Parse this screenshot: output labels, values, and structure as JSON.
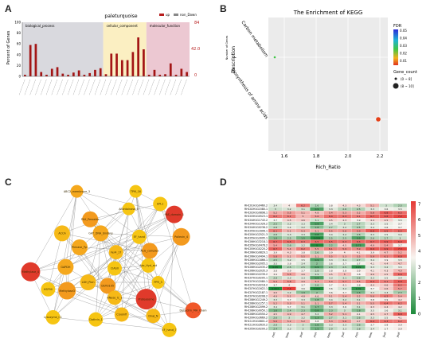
{
  "panels": {
    "a": "A",
    "b": "B",
    "c": "C",
    "d": "D"
  },
  "panel_a": {
    "title": "paleturquoise",
    "ylabel": "Percent of Genes",
    "right_ticks": [
      "84",
      "42.0",
      "0"
    ],
    "left_ticks": [
      "100",
      "80",
      "60",
      "40",
      "20",
      "0"
    ],
    "legend": [
      "up",
      "non_Down"
    ],
    "groups": [
      {
        "label": "biological_process",
        "color": "#d9d9de",
        "n": 15
      },
      {
        "label": "cellular_component",
        "color": "#fbefc2",
        "n": 8
      },
      {
        "label": "molecular_function",
        "color": "#ecc8d2",
        "n": 8
      }
    ]
  },
  "chart_data": [
    {
      "type": "bar",
      "title": "paleturquoise",
      "ylabel": "Percent of Genes",
      "ylim": [
        0,
        100
      ],
      "legend": [
        "up",
        "non_Down"
      ],
      "series": [
        {
          "name": "up",
          "values": [
            3,
            58,
            60,
            8,
            3,
            14,
            17,
            5,
            3,
            7,
            11,
            3,
            6,
            12,
            15,
            4,
            42,
            42,
            30,
            30,
            45,
            72,
            50,
            3,
            12,
            3,
            4,
            24,
            3,
            14,
            8
          ]
        }
      ]
    },
    {
      "type": "scatter",
      "title": "The Enrichment of KEGG",
      "xlabel": "Rich_Ratio",
      "ylabel": "Description",
      "categories": [
        "Biosynthesis of amino acids",
        "Carbon metabolism"
      ],
      "x_ticks": [
        "1.6",
        "1.8",
        "2.0",
        "2.2"
      ],
      "xlim": [
        1.5,
        2.25
      ],
      "points": [
        {
          "name": "Carbon metabolism",
          "x": 1.54,
          "gene_count": 6,
          "fdr": 0.03
        },
        {
          "name": "Biosynthesis of amino acids",
          "x": 2.19,
          "gene_count": 10,
          "fdr": 0.005
        }
      ],
      "fdr_label": "FDR",
      "fdr_ticks": [
        "0.05",
        "0.04",
        "0.03",
        "0.02",
        "0.01"
      ],
      "size_label": "Gene_count",
      "size_legend": [
        "(0 ~ 8]",
        "(8 ~ 10]"
      ],
      "side_label": "Number of Genes"
    },
    {
      "type": "heatmap",
      "rows": [
        {
          "gene": "RHC01H1G0460.2",
          "v": [
            3.4,
            4,
            6.2,
            2.6,
            3.8,
            4.3,
            4.3,
            5.1,
            3,
            2.5
          ]
        },
        {
          "gene": "RHC02H1G1580.1",
          "v": [
            3,
            3.2,
            3.1,
            0.9,
            3.3,
            2.6,
            2.5,
            3.3,
            3.6,
            3.5
          ]
        },
        {
          "gene": "RHC02H1G0898.1",
          "v": [
            5.2,
            5.5,
            5.1,
            4.8,
            5.4,
            5.3,
            5.2,
            5.8,
            6.8,
            6.5
          ]
        },
        {
          "gene": "RHC03H1G0523.1",
          "v": [
            6.2,
            6.1,
            5,
            5.6,
            6.4,
            6.3,
            6.1,
            6.7,
            6.8,
            7.2
          ]
        },
        {
          "gene": "RHC04H1G1743.2",
          "v": [
            3.7,
            4.5,
            4.6,
            3.1,
            4.5,
            4.3,
            3.9,
            4.4,
            4.5,
            3.5
          ]
        },
        {
          "gene": "RHC04H1G1326.2",
          "v": [
            2.5,
            3.2,
            3.3,
            0.9,
            3.4,
            3,
            2.7,
            3.3,
            3.5,
            3.7
          ]
        },
        {
          "gene": "RHC04H1G0236.2",
          "v": [
            2.8,
            3.4,
            3.2,
            1.8,
            2.7,
            3.2,
            2.5,
            3.4,
            3.6,
            3.7
          ]
        },
        {
          "gene": "RHC05H1G1606.1",
          "v": [
            6.1,
            5.1,
            5.3,
            5.1,
            5.5,
            5.6,
            5.9,
            6.8,
            6.5,
            6.5
          ]
        },
        {
          "gene": "RHC05H1G2521.3",
          "v": [
            2.8,
            3.3,
            3.3,
            0.8,
            3.4,
            3.2,
            2.6,
            3.3,
            3.5,
            3.4
          ]
        },
        {
          "gene": "RHC05H1G3095.1",
          "v": [
            1.8,
            2.5,
            1.5,
            0.059,
            2.5,
            2.5,
            0.9,
            2.6,
            2.7,
            3
          ]
        },
        {
          "gene": "RHC06H1G3218.1",
          "v": [
            6.7,
            6.6,
            6.3,
            6.5,
            6.5,
            6.3,
            6.6,
            6.7,
            6.9,
            6.9
          ]
        },
        {
          "gene": "RHC05H1G0478.2",
          "v": [
            5.4,
            2.6,
            3.2,
            0,
            2.2,
            4.5,
            0.73,
            4.9,
            5.4,
            3.7
          ]
        },
        {
          "gene": "RHC05H1G0220.2",
          "v": [
            6.7,
            5.4,
            6.2,
            5.5,
            6.1,
            5.9,
            5.9,
            6.9,
            6.9,
            7.3
          ]
        },
        {
          "gene": "RHC06H1G0829.1",
          "v": [
            3.9,
            4.3,
            3.8,
            2.6,
            3.9,
            4,
            4.1,
            3.9,
            4.7,
            5.2
          ]
        },
        {
          "gene": "RHC06H1G0494.1",
          "v": [
            5.8,
            5.1,
            5.5,
            5.1,
            5.5,
            5.3,
            5.5,
            5.9,
            6.1,
            6.8
          ]
        },
        {
          "gene": "RHC06H1G1866.1",
          "v": [
            2.5,
            3.2,
            3.5,
            0.9,
            3.3,
            3.1,
            2.7,
            3.4,
            3.9,
            3.5
          ]
        },
        {
          "gene": "RHC06H1G2005.1",
          "v": [
            3.5,
            3.8,
            3.4,
            2,
            3.6,
            3.7,
            3.7,
            4.1,
            4.4,
            4.7
          ]
        },
        {
          "gene": "RHC06H1G2035.2",
          "v": [
            0.05,
            2.5,
            2.5,
            0.9,
            2.3,
            2.5,
            0.29,
            3.3,
            3.2,
            3.5
          ]
        },
        {
          "gene": "RHC06H1G2035.3",
          "v": [
            3.8,
            3.9,
            3.7,
            2.8,
            3.8,
            3.8,
            3.9,
            4.1,
            4.3,
            4.9
          ]
        },
        {
          "gene": "RHC06H1G2239.2",
          "v": [
            3.9,
            5.5,
            4.6,
            2.9,
            4.5,
            5,
            3.8,
            4.6,
            4.5,
            6.6
          ]
        },
        {
          "gene": "RHC07H1G0205.1",
          "v": [
            2.8,
            3.3,
            3.3,
            0.9,
            3.3,
            3.1,
            2.6,
            3.3,
            3.5,
            3.4
          ]
        },
        {
          "gene": "RHC07H1G2080.1",
          "v": [
            5.4,
            5.8,
            4.9,
            5.3,
            5.4,
            5.7,
            5.5,
            6.4,
            6.1,
            6.8
          ]
        },
        {
          "gene": "RHC07H1G0218.2",
          "v": [
            3.7,
            4,
            3.7,
            2.6,
            3.7,
            4.1,
            3.8,
            4.4,
            4.6,
            6.2
          ]
        },
        {
          "gene": "RHC07H1G1622.1",
          "v": [
            0.057,
            7.4,
            3.6,
            0.062,
            3.6,
            3.2,
            0.39,
            3.7,
            4.6,
            5.7
          ]
        },
        {
          "gene": "RHC07H1G2187.1",
          "v": [
            4.6,
            3.2,
            1.9,
            2,
            3.6,
            3.7,
            1.6,
            3.3,
            3.3,
            2.3
          ]
        },
        {
          "gene": "RHC07H1G0208.2",
          "v": [
            4.9,
            5.1,
            4.8,
            4.6,
            5.1,
            5.4,
            5.2,
            5.6,
            6.2,
            5.4
          ]
        },
        {
          "gene": "RHC08H1G1249.2",
          "v": [
            3.3,
            3.7,
            3.3,
            1.8,
            3.4,
            3.2,
            3.1,
            3.8,
            3.9,
            4.2
          ]
        },
        {
          "gene": "RHC08H1G1257.1",
          "v": [
            5.2,
            5.3,
            5.1,
            5.1,
            5.7,
            5.4,
            5.1,
            5.5,
            6.4,
            6.2
          ]
        },
        {
          "gene": "RHC08H1G2099.2",
          "v": [
            3.4,
            3.7,
            3.1,
            1.7,
            3.3,
            3.6,
            3.1,
            4.3,
            4.4,
            4.2
          ]
        },
        {
          "gene": "RHC08H1G0050.1",
          "v": [
            1.6,
            2.4,
            2.3,
            0.9,
            2.3,
            3,
            1.8,
            3.5,
            3.6,
            3.1
          ]
        },
        {
          "gene": "RHC08H1G0550.2",
          "v": [
            4.5,
            4.9,
            4.7,
            3.2,
            5.2,
            5.1,
            4.1,
            4.5,
            4.7,
            6.8
          ]
        },
        {
          "gene": "RHC09H1G3669.2",
          "v": [
            2.6,
            3,
            3.2,
            1.3,
            2.7,
            3.1,
            2.6,
            3.3,
            3.5,
            4.1
          ]
        },
        {
          "gene": "RHC11H1G0801.2",
          "v": [
            5.6,
            5.2,
            5.2,
            3.8,
            5.3,
            5.6,
            4.7,
            6.4,
            6.3,
            6.2
          ]
        },
        {
          "gene": "RHC11H1G2633.2",
          "v": [
            2.8,
            3.3,
            3,
            1.6,
            3.3,
            3.3,
            2.6,
            3.7,
            3.8,
            3.9
          ]
        },
        {
          "gene": "RHC05H1G0200.2",
          "v": [
            2.4,
            3.3,
            3,
            1.5,
            2.9,
            3.3,
            2.8,
            3.4,
            3.7,
            3.9
          ]
        }
      ],
      "columns": [
        "SS_root",
        "SS_stem",
        "SS_leaf",
        "FFS_root",
        "TFS_stem",
        "TFS_leaf",
        "TES_root",
        "TES_stem",
        "TES_leaf",
        "TES_leaf"
      ],
      "scale_ticks": [
        "7",
        "6",
        "5",
        "4",
        "3",
        "2",
        "1",
        "0"
      ]
    }
  ],
  "network": {
    "center_label": "DUF3105",
    "nodes": [
      {
        "label": "ABC2_membrane_3",
        "color": "#f5a81d",
        "r": 8
      },
      {
        "label": "TPM_16",
        "color": "#f6c513",
        "r": 8
      },
      {
        "label": "Allantoinase_1",
        "color": "#f6c513",
        "r": 8
      },
      {
        "label": "EPL1",
        "color": "#f6c513",
        "r": 9
      },
      {
        "label": "PAS_domain_1",
        "color": "#e03a2b",
        "r": 11
      },
      {
        "label": "PAX_Peroxide",
        "color": "#f39a1e",
        "r": 10
      },
      {
        "label": "ACCA",
        "color": "#f6b917",
        "r": 10
      },
      {
        "label": "GAT_DNA_binding",
        "color": "#f5a81d",
        "r": 10
      },
      {
        "label": "EF_hand",
        "color": "#f6c513",
        "r": 9
      },
      {
        "label": "Pollexin_4",
        "color": "#f39a1e",
        "r": 11
      },
      {
        "label": "Pkinase_Tyr",
        "color": "#f5a81d",
        "r": 10
      },
      {
        "label": "Fer4_17",
        "color": "#f6b917",
        "r": 9
      },
      {
        "label": "GAPDH",
        "color": "#f5a81d",
        "r": 10
      },
      {
        "label": "CIAS0",
        "color": "#f6c513",
        "r": 9
      },
      {
        "label": "ALG_complex",
        "color": "#f39a1e",
        "r": 10
      },
      {
        "label": "Abc_Hyd_ext",
        "color": "#f6c513",
        "r": 9
      },
      {
        "label": "Methylase_4",
        "color": "#e03a2b",
        "r": 12
      },
      {
        "label": "LDH_Plan",
        "color": "#f6b917",
        "r": 10
      },
      {
        "label": "DUF3105",
        "color": "#f39a1e",
        "r": 10
      },
      {
        "label": "PPR_3",
        "color": "#f6c513",
        "r": 8
      },
      {
        "label": "Methylase3",
        "color": "#f39a1e",
        "r": 11
      },
      {
        "label": "RNase_Ic_1",
        "color": "#f6b917",
        "r": 9
      },
      {
        "label": "HSP90",
        "color": "#f6c513",
        "r": 9
      },
      {
        "label": "Proteasome",
        "color": "#e03a2b",
        "r": 13
      },
      {
        "label": "Lysozyme_C1",
        "color": "#f6c513",
        "r": 9
      },
      {
        "label": "Clathrin_1",
        "color": "#f6c513",
        "r": 9
      },
      {
        "label": "Cryoinfl",
        "color": "#f6b917",
        "r": 9
      },
      {
        "label": "DnaJ_N",
        "color": "#f6b917",
        "r": 9
      },
      {
        "label": "EF_hand_7",
        "color": "#f6c513",
        "r": 9
      },
      {
        "label": "Dehydrin_MH_Chain",
        "color": "#f0582a",
        "r": 10
      }
    ]
  }
}
